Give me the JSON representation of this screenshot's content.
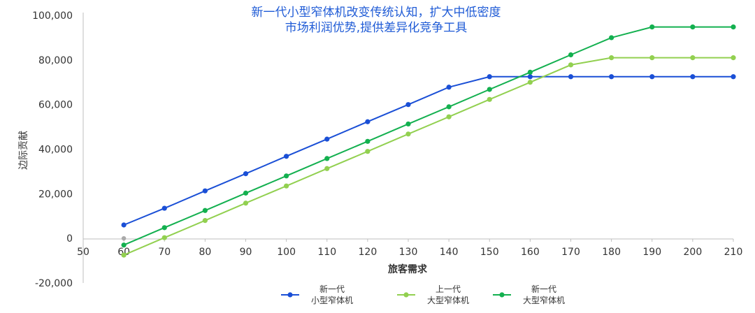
{
  "chart_data": {
    "type": "line",
    "title_lines": [
      "新一代小型窄体机改变传统认知，扩大中低密度",
      "市场利润优势,提供差异化竞争工具"
    ],
    "xlabel": "旅客需求",
    "ylabel": "边际贡献",
    "xlim": [
      50,
      210
    ],
    "ylim": [
      -20000,
      100000
    ],
    "x_ticks": [
      "50",
      "60",
      "70",
      "80",
      "90",
      "100",
      "110",
      "120",
      "130",
      "140",
      "150",
      "160",
      "170",
      "180",
      "190",
      "200",
      "210"
    ],
    "y_ticks": [
      "-20,000",
      "0",
      "20,000",
      "40,000",
      "60,000",
      "80,000",
      "100,000"
    ],
    "x": [
      60,
      70,
      80,
      90,
      100,
      110,
      120,
      130,
      140,
      150,
      160,
      170,
      180,
      190,
      200,
      210
    ],
    "series": [
      {
        "name_lines": [
          "新一代",
          "小型窄体机"
        ],
        "color": "#1a4fd6",
        "values": [
          6000,
          13500,
          21300,
          29000,
          36800,
          44500,
          52300,
          60000,
          67800,
          72500,
          72500,
          72500,
          72500,
          72500,
          72500,
          72500
        ]
      },
      {
        "name_lines": [
          "上一代",
          "大型窄体机"
        ],
        "color": "#92d050",
        "values": [
          -7500,
          300,
          8000,
          15800,
          23500,
          31300,
          39000,
          46800,
          54500,
          62300,
          70000,
          77800,
          81000,
          81000,
          81000,
          81000
        ]
      },
      {
        "name_lines": [
          "新一代",
          "大型窄体机"
        ],
        "color": "#13b04f",
        "values": [
          -3000,
          4800,
          12500,
          20300,
          28000,
          35800,
          43500,
          51300,
          59000,
          66800,
          74500,
          82300,
          90000,
          94800,
          94800,
          94800
        ]
      }
    ],
    "extra_marker": {
      "x": 60,
      "y": 0,
      "color": "#aaaaaa"
    },
    "grid": false,
    "legend_position": "bottom"
  }
}
